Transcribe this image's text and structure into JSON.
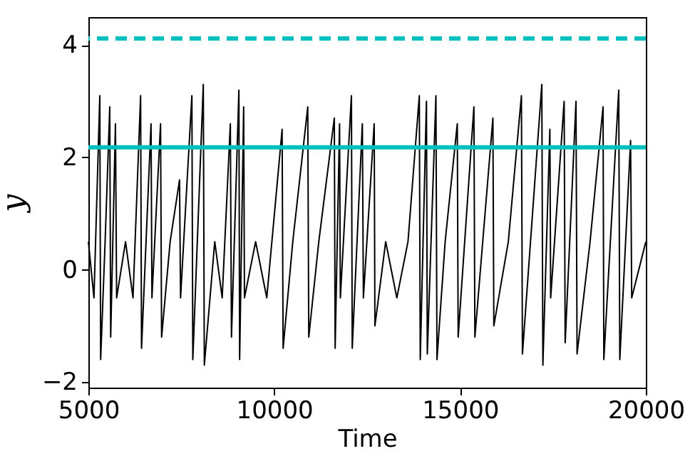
{
  "chart_data": {
    "type": "line",
    "xlabel": "Time",
    "ylabel": "y",
    "xlim": [
      5000,
      20000
    ],
    "xticks": [
      5000,
      10000,
      15000,
      20000
    ],
    "ylim": [
      -2.1,
      4.5
    ],
    "yticks": [
      {
        "value": -2,
        "label": "−2"
      },
      0,
      2,
      4
    ],
    "series": [
      {
        "color": "#000000",
        "x": [
          5000,
          5150,
          5307,
          5330,
          5450,
          5575,
          5600,
          5728,
          5760,
          6000,
          6200,
          6405,
          6430,
          6686,
          6710,
          6942,
          6970,
          7200,
          7453,
          7480,
          7785,
          7810,
          8092,
          8120,
          8400,
          8600,
          8820,
          8850,
          9050,
          9070,
          9178,
          9200,
          9500,
          9800,
          10213,
          10240,
          10500,
          10903,
          10930,
          11200,
          11618,
          11640,
          11759,
          11780,
          12078,
          12100,
          12372,
          12400,
          12691,
          12710,
          13000,
          13300,
          13600,
          13905,
          13930,
          14097,
          14120,
          14352,
          14380,
          14600,
          14927,
          14950,
          15374,
          15400,
          15885,
          15910,
          16300,
          16652,
          16680,
          17201,
          17230,
          17418,
          17440,
          17802,
          17830,
          18121,
          18150,
          18500,
          18849,
          18870,
          19271,
          19300,
          19590,
          19620,
          20000
        ],
        "values": [
          0.5,
          -0.5,
          3.1,
          -1.6,
          0.5,
          2.9,
          -1.2,
          2.6,
          -0.5,
          0.5,
          -0.5,
          3.1,
          -1.4,
          2.6,
          -0.5,
          2.6,
          -1.2,
          0.5,
          1.6,
          -0.5,
          3.1,
          -1.6,
          3.3,
          -1.7,
          0.5,
          -0.5,
          2.6,
          -1.2,
          3.2,
          -1.6,
          2.9,
          -0.5,
          0.5,
          -0.5,
          2.5,
          -1.4,
          0.5,
          2.9,
          -1.2,
          0.5,
          2.7,
          -1.4,
          2.6,
          -0.5,
          3.1,
          -1.4,
          2.6,
          -0.5,
          2.6,
          -1.0,
          0.5,
          -0.5,
          0.5,
          3.1,
          -1.6,
          3.0,
          -1.5,
          3.1,
          -1.6,
          0.5,
          2.6,
          -1.2,
          2.9,
          -1.2,
          2.7,
          -1.0,
          0.5,
          3.1,
          -1.5,
          3.3,
          -1.7,
          2.5,
          -0.5,
          3.0,
          -1.3,
          3.0,
          -1.5,
          0.5,
          2.9,
          -1.6,
          3.2,
          -1.6,
          2.3,
          -0.5,
          0.5
        ]
      }
    ],
    "ref_lines": [
      {
        "axis": "y",
        "value": 4.12,
        "color": "#00bfbf",
        "line_style": "dashed"
      },
      {
        "axis": "y",
        "value": 2.18,
        "color": "#00bfbf",
        "line_style": "solid"
      }
    ]
  }
}
